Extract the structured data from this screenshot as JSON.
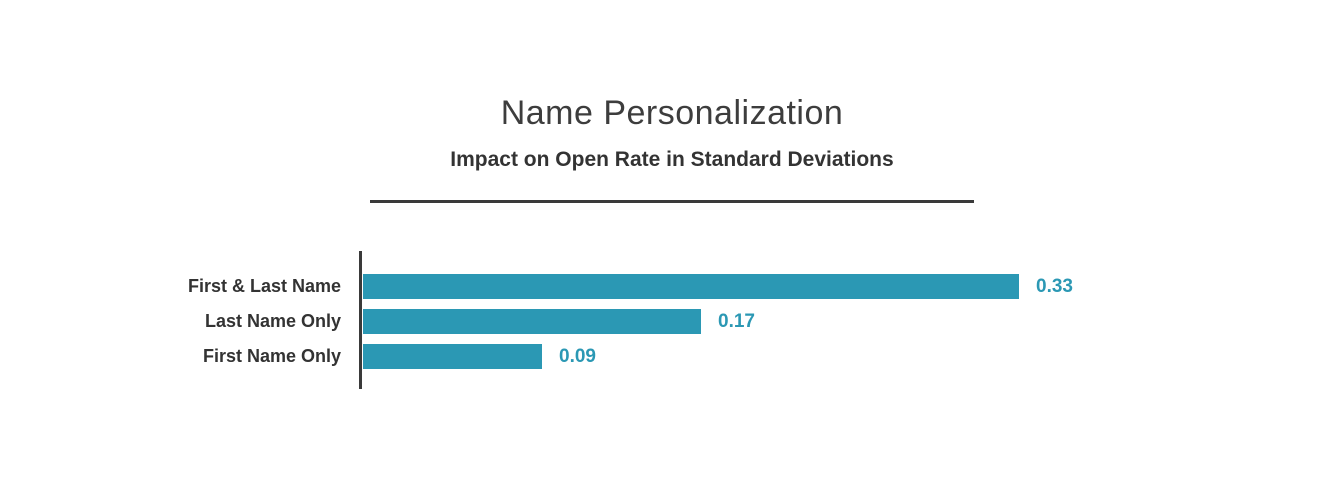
{
  "header": {
    "title": "Name Personalization",
    "subtitle": "Impact on Open Rate in Standard Deviations"
  },
  "chart_data": {
    "type": "bar",
    "orientation": "horizontal",
    "title": "Name Personalization",
    "subtitle": "Impact on Open Rate in Standard Deviations",
    "categories": [
      "First & Last Name",
      "Last Name Only",
      "First Name Only"
    ],
    "values": [
      0.33,
      0.17,
      0.09
    ],
    "value_labels": [
      "0.33",
      "0.17",
      "0.09"
    ],
    "xlabel": "",
    "ylabel": "",
    "xlim": [
      0,
      0.33
    ],
    "grid": false,
    "legend": false,
    "bar_color": "#2b98b4",
    "value_label_color": "#2b98b4",
    "category_label_color": "#333333",
    "axis_color": "#3a3a3a"
  }
}
